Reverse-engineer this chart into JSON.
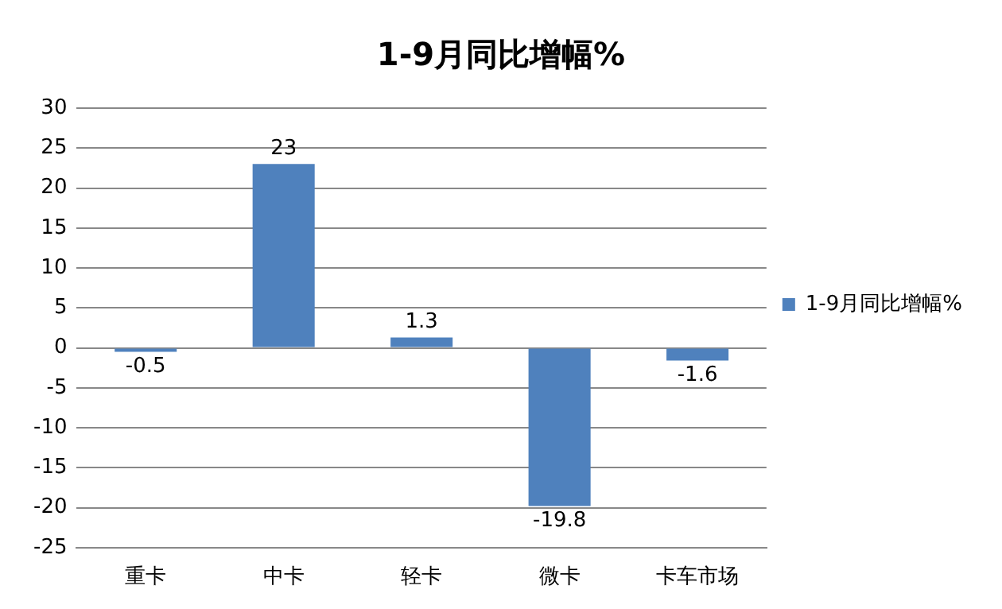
{
  "chart_data": {
    "type": "bar",
    "title": "1-9月同比增幅%",
    "categories": [
      "重卡",
      "中卡",
      "轻卡",
      "微卡",
      "卡车市场"
    ],
    "series": [
      {
        "name": "1-9月同比增幅%",
        "color": "#4f81bd",
        "values": [
          -0.5,
          23,
          1.3,
          -19.8,
          -1.6
        ]
      }
    ],
    "ylim": [
      -25,
      30
    ],
    "yticks": [
      -25,
      -20,
      -15,
      -10,
      -5,
      0,
      5,
      10,
      15,
      20,
      25,
      30
    ],
    "grid": "y",
    "legend": "right",
    "data_labels": true
  }
}
